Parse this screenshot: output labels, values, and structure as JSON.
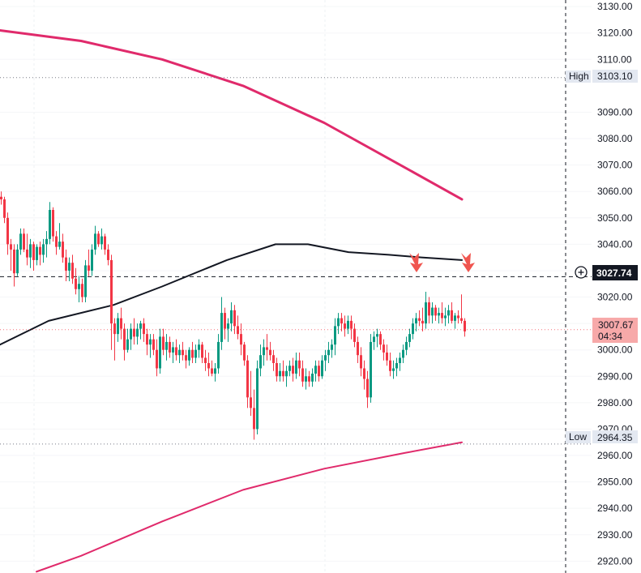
{
  "chart_data": {
    "type": "candlestick",
    "y_axis": {
      "ticks": [
        "3130.00",
        "3120.00",
        "3110.00",
        "3090.00",
        "3080.00",
        "3070.00",
        "3060.00",
        "3050.00",
        "3040.00",
        "3030.00",
        "3020.00",
        "3010.00",
        "3000.00",
        "2990.00",
        "2980.00",
        "2970.00",
        "2960.00",
        "2950.00",
        "2940.00",
        "2930.00",
        "2920.00"
      ],
      "range": [
        2915.5,
        3132.5
      ]
    },
    "grid": true,
    "levels": {
      "high": {
        "label": "High",
        "value": "3103.10"
      },
      "low": {
        "label": "Low",
        "value": "2964.35"
      },
      "crosshair": {
        "value": "3027.74",
        "icon": "plus-circle-icon"
      },
      "current": {
        "value": "3007.67",
        "countdown": "04:34"
      }
    },
    "colors": {
      "up": "#089981",
      "down": "#f23645",
      "upper_band": "#e02a6b",
      "lower_band": "#e02a6b",
      "moving_average": "#131722",
      "arrows": "#f0554f",
      "current_badge": "#f7a9a9"
    },
    "series": {
      "upper_band": [
        [
          0,
          3121
        ],
        [
          100,
          3117
        ],
        [
          200,
          3110
        ],
        [
          300,
          3100
        ],
        [
          400,
          3086
        ],
        [
          500,
          3069
        ],
        [
          570,
          3057
        ]
      ],
      "lower_band": [
        [
          45,
          2916
        ],
        [
          100,
          2922
        ],
        [
          200,
          2935
        ],
        [
          300,
          2947
        ],
        [
          400,
          2955
        ],
        [
          500,
          2961
        ],
        [
          570,
          2965
        ]
      ],
      "moving_average": [
        [
          0,
          3002
        ],
        [
          60,
          3011
        ],
        [
          140,
          3017
        ],
        [
          200,
          3024
        ],
        [
          280,
          3034
        ],
        [
          340,
          3040
        ],
        [
          380,
          3040
        ],
        [
          430,
          3037
        ],
        [
          480,
          3036
        ],
        [
          520,
          3035
        ],
        [
          570,
          3034
        ]
      ]
    },
    "candles": [
      [
        0,
        3058,
        3060,
        3055,
        3057
      ],
      [
        4,
        3057,
        3058,
        3048,
        3050
      ],
      [
        8,
        3050,
        3052,
        3036,
        3040
      ],
      [
        12,
        3040,
        3042,
        3030,
        3038
      ],
      [
        16,
        3038,
        3040,
        3024,
        3029
      ],
      [
        20,
        3029,
        3040,
        3028,
        3038
      ],
      [
        24,
        3038,
        3046,
        3036,
        3044
      ],
      [
        28,
        3044,
        3046,
        3037,
        3038
      ],
      [
        32,
        3038,
        3044,
        3032,
        3035
      ],
      [
        36,
        3035,
        3042,
        3031,
        3040
      ],
      [
        40,
        3040,
        3041,
        3030,
        3034
      ],
      [
        44,
        3034,
        3040,
        3032,
        3039
      ],
      [
        48,
        3039,
        3041,
        3032,
        3036
      ],
      [
        52,
        3036,
        3042,
        3033,
        3040
      ],
      [
        56,
        3040,
        3045,
        3035,
        3042
      ],
      [
        60,
        3042,
        3056,
        3040,
        3053
      ],
      [
        64,
        3053,
        3054,
        3041,
        3043
      ],
      [
        68,
        3043,
        3045,
        3036,
        3039
      ],
      [
        72,
        3039,
        3048,
        3038,
        3041
      ],
      [
        76,
        3041,
        3044,
        3033,
        3035
      ],
      [
        80,
        3035,
        3038,
        3026,
        3030
      ],
      [
        84,
        3030,
        3035,
        3026,
        3033
      ],
      [
        88,
        3033,
        3036,
        3025,
        3027
      ],
      [
        92,
        3027,
        3031,
        3021,
        3023
      ],
      [
        96,
        3023,
        3028,
        3018,
        3025
      ],
      [
        100,
        3025,
        3027,
        3018,
        3020
      ],
      [
        104,
        3020,
        3034,
        3018,
        3032
      ],
      [
        108,
        3032,
        3038,
        3028,
        3030
      ],
      [
        112,
        3030,
        3040,
        3028,
        3038
      ],
      [
        116,
        3038,
        3047,
        3036,
        3044
      ],
      [
        120,
        3044,
        3045,
        3039,
        3040
      ],
      [
        124,
        3040,
        3046,
        3038,
        3043
      ],
      [
        128,
        3043,
        3044,
        3036,
        3038
      ],
      [
        132,
        3038,
        3040,
        3032,
        3034
      ],
      [
        136,
        3034,
        3036,
        3000,
        3010
      ],
      [
        140,
        3010,
        3012,
        2996,
        3006
      ],
      [
        144,
        3006,
        3014,
        3003,
        3012
      ],
      [
        148,
        3012,
        3016,
        3004,
        3008
      ],
      [
        152,
        3008,
        3010,
        2996,
        3000
      ],
      [
        156,
        3000,
        3008,
        2999,
        3004
      ],
      [
        160,
        3004,
        3010,
        3000,
        3008
      ],
      [
        164,
        3008,
        3012,
        3002,
        3005
      ],
      [
        168,
        3005,
        3010,
        3002,
        3008
      ],
      [
        172,
        3008,
        3011,
        3004,
        3010
      ],
      [
        176,
        3010,
        3012,
        3003,
        3006
      ],
      [
        180,
        3006,
        3008,
        2998,
        3002
      ],
      [
        184,
        3002,
        3006,
        2997,
        3004
      ],
      [
        188,
        3004,
        3006,
        2998,
        3000
      ],
      [
        192,
        3000,
        3004,
        2990,
        2993
      ],
      [
        196,
        2993,
        3008,
        2991,
        3005
      ],
      [
        200,
        3005,
        3008,
        2998,
        3000
      ],
      [
        204,
        3000,
        3006,
        2996,
        3003
      ],
      [
        208,
        3003,
        3005,
        2997,
        2999
      ],
      [
        212,
        2999,
        3003,
        2995,
        3001
      ],
      [
        216,
        3001,
        3004,
        2996,
        2998
      ],
      [
        220,
        2998,
        3002,
        2995,
        3000
      ],
      [
        224,
        3000,
        3003,
        2996,
        2998
      ],
      [
        228,
        2998,
        3000,
        2993,
        2996
      ],
      [
        232,
        2996,
        3001,
        2994,
        3000
      ],
      [
        236,
        3000,
        3003,
        2995,
        2997
      ],
      [
        240,
        2997,
        3002,
        2995,
        3000
      ],
      [
        244,
        3000,
        3004,
        2997,
        3002
      ],
      [
        248,
        3002,
        3003,
        2995,
        2997
      ],
      [
        252,
        2997,
        3000,
        2992,
        2995
      ],
      [
        256,
        2995,
        2999,
        2990,
        2993
      ],
      [
        260,
        2993,
        2996,
        2990,
        2991
      ],
      [
        264,
        2991,
        2995,
        2988,
        2993
      ],
      [
        268,
        2993,
        3006,
        2991,
        3003
      ],
      [
        272,
        3003,
        3020,
        3000,
        3014
      ],
      [
        276,
        3014,
        3016,
        3004,
        3008
      ],
      [
        280,
        3008,
        3012,
        3003,
        3010
      ],
      [
        284,
        3010,
        3018,
        3007,
        3015
      ],
      [
        288,
        3015,
        3017,
        3006,
        3009
      ],
      [
        292,
        3009,
        3013,
        3004,
        3006
      ],
      [
        296,
        3006,
        3010,
        2998,
        3002
      ],
      [
        300,
        3002,
        3003,
        2994,
        2996
      ],
      [
        304,
        2996,
        2998,
        2978,
        2982
      ],
      [
        308,
        2982,
        2992,
        2975,
        2978
      ],
      [
        312,
        2978,
        2985,
        2966,
        2970
      ],
      [
        316,
        2970,
        2996,
        2968,
        2993
      ],
      [
        320,
        2993,
        3002,
        2990,
        2998
      ],
      [
        324,
        2998,
        3004,
        2994,
        3001
      ],
      [
        328,
        3001,
        3006,
        2996,
        3000
      ],
      [
        332,
        3000,
        3003,
        2996,
        2998
      ],
      [
        336,
        2998,
        3000,
        2992,
        2995
      ],
      [
        340,
        2995,
        2997,
        2988,
        2990
      ],
      [
        344,
        2990,
        2995,
        2988,
        2992
      ],
      [
        348,
        2992,
        2996,
        2988,
        2990
      ],
      [
        352,
        2990,
        2994,
        2986,
        2992
      ],
      [
        356,
        2992,
        2996,
        2990,
        2994
      ],
      [
        360,
        2994,
        2997,
        2988,
        2991
      ],
      [
        364,
        2991,
        2999,
        2989,
        2996
      ],
      [
        368,
        2996,
        2999,
        2990,
        2993
      ],
      [
        372,
        2993,
        2996,
        2986,
        2988
      ],
      [
        376,
        2988,
        2993,
        2985,
        2990
      ],
      [
        380,
        2990,
        2992,
        2986,
        2988
      ],
      [
        384,
        2988,
        2993,
        2986,
        2991
      ],
      [
        388,
        2991,
        2996,
        2988,
        2994
      ],
      [
        392,
        2994,
        2996,
        2988,
        2990
      ],
      [
        396,
        2990,
        2998,
        2989,
        2996
      ],
      [
        400,
        2996,
        3000,
        2992,
        2998
      ],
      [
        404,
        2998,
        3003,
        2995,
        3000
      ],
      [
        408,
        3000,
        3004,
        2997,
        3002
      ],
      [
        412,
        3002,
        3012,
        2998,
        3009
      ],
      [
        416,
        3009,
        3014,
        3006,
        3012
      ],
      [
        420,
        3012,
        3014,
        3007,
        3010
      ],
      [
        424,
        3010,
        3013,
        3005,
        3008
      ],
      [
        428,
        3008,
        3013,
        3006,
        3011
      ],
      [
        432,
        3011,
        3013,
        3004,
        3008
      ],
      [
        436,
        3008,
        3010,
        3001,
        3003
      ],
      [
        440,
        3003,
        3005,
        2995,
        2998
      ],
      [
        444,
        2998,
        3001,
        2990,
        2993
      ],
      [
        448,
        2993,
        2996,
        2985,
        2989
      ],
      [
        452,
        2989,
        2992,
        2978,
        2982
      ],
      [
        456,
        2982,
        3006,
        2980,
        3003
      ],
      [
        460,
        3003,
        3007,
        3000,
        3005
      ],
      [
        464,
        3005,
        3008,
        3001,
        3006
      ],
      [
        468,
        3006,
        3007,
        3000,
        3002
      ],
      [
        472,
        3002,
        3004,
        2996,
        2999
      ],
      [
        476,
        2999,
        3002,
        2994,
        2996
      ],
      [
        480,
        2996,
        2999,
        2990,
        2992
      ],
      [
        484,
        2992,
        2996,
        2989,
        2993
      ],
      [
        488,
        2993,
        2997,
        2990,
        2995
      ],
      [
        492,
        2995,
        2999,
        2992,
        2997
      ],
      [
        496,
        2997,
        3002,
        2995,
        3000
      ],
      [
        500,
        3000,
        3005,
        2998,
        3003
      ],
      [
        504,
        3003,
        3008,
        3001,
        3006
      ],
      [
        508,
        3006,
        3012,
        3004,
        3010
      ],
      [
        512,
        3010,
        3014,
        3007,
        3012
      ],
      [
        516,
        3012,
        3015,
        3009,
        3011
      ],
      [
        520,
        3011,
        3016,
        3007,
        3010
      ],
      [
        524,
        3010,
        3022,
        3008,
        3018
      ],
      [
        528,
        3018,
        3020,
        3010,
        3013
      ],
      [
        532,
        3013,
        3018,
        3010,
        3016
      ],
      [
        536,
        3016,
        3017,
        3011,
        3013
      ],
      [
        540,
        3013,
        3016,
        3010,
        3014
      ],
      [
        544,
        3014,
        3018,
        3010,
        3012
      ],
      [
        548,
        3012,
        3016,
        3009,
        3013
      ],
      [
        552,
        3013,
        3017,
        3010,
        3015
      ],
      [
        556,
        3015,
        3018,
        3010,
        3011
      ],
      [
        560,
        3011,
        3014,
        3008,
        3013
      ],
      [
        564,
        3013,
        3015,
        3010,
        3012
      ],
      [
        568,
        3012,
        3021,
        3010,
        3011
      ],
      [
        572,
        3011,
        3012,
        3005,
        3007
      ]
    ],
    "arrows": [
      [
        514,
        3030
      ],
      [
        578,
        3030
      ]
    ]
  }
}
